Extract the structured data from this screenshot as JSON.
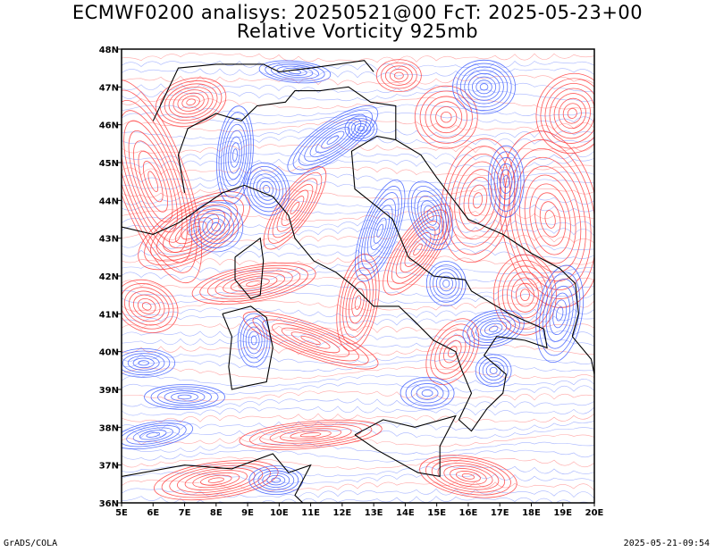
{
  "title_line1": "ECMWF0200 analisys: 20250521@00 FcT: 2025-05-23+00",
  "title_line2": "Relative Vorticity 925mb",
  "footer_left": "GrADS/COLA",
  "footer_right": "2025-05-21-09:54",
  "map": {
    "lon_range": [
      5,
      20
    ],
    "lat_range": [
      36,
      48
    ],
    "lon_ticks": [
      "5E",
      "6E",
      "7E",
      "8E",
      "9E",
      "10E",
      "11E",
      "12E",
      "13E",
      "14E",
      "15E",
      "16E",
      "17E",
      "18E",
      "19E",
      "20E"
    ],
    "lat_ticks": [
      "36N",
      "37N",
      "38N",
      "39N",
      "40N",
      "41N",
      "42N",
      "43N",
      "44N",
      "45N",
      "46N",
      "47N",
      "48N"
    ],
    "colors": {
      "positive_vorticity": "#ff3b3b",
      "negative_vorticity": "#3c5cff",
      "coastline": "#000000",
      "frame": "#000000"
    }
  }
}
